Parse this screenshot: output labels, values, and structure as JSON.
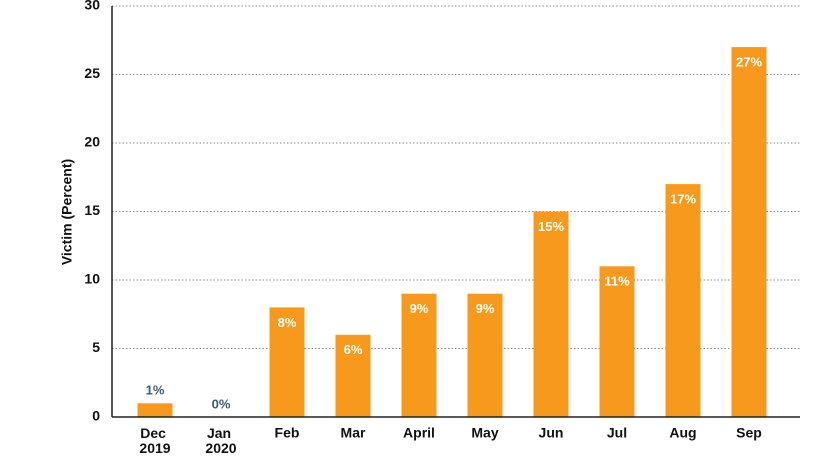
{
  "chart_data": {
    "type": "bar",
    "y_label": "Victim (Percent)",
    "categories": [
      "Dec 2019",
      "Jan 2020",
      "Feb",
      "Mar",
      "April",
      "May",
      "Jun",
      "Jul",
      "Aug",
      "Sep"
    ],
    "values": [
      1,
      0,
      8,
      6,
      9,
      9,
      15,
      11,
      17,
      27
    ],
    "value_labels": [
      "1%",
      "0%",
      "8%",
      "6%",
      "9%",
      "9%",
      "15%",
      "11%",
      "17%",
      "27%"
    ],
    "color": "#f7991c",
    "ylim": [
      0,
      30
    ],
    "yticks": [
      0,
      5,
      10,
      15,
      20,
      25,
      30
    ],
    "grid": true
  }
}
